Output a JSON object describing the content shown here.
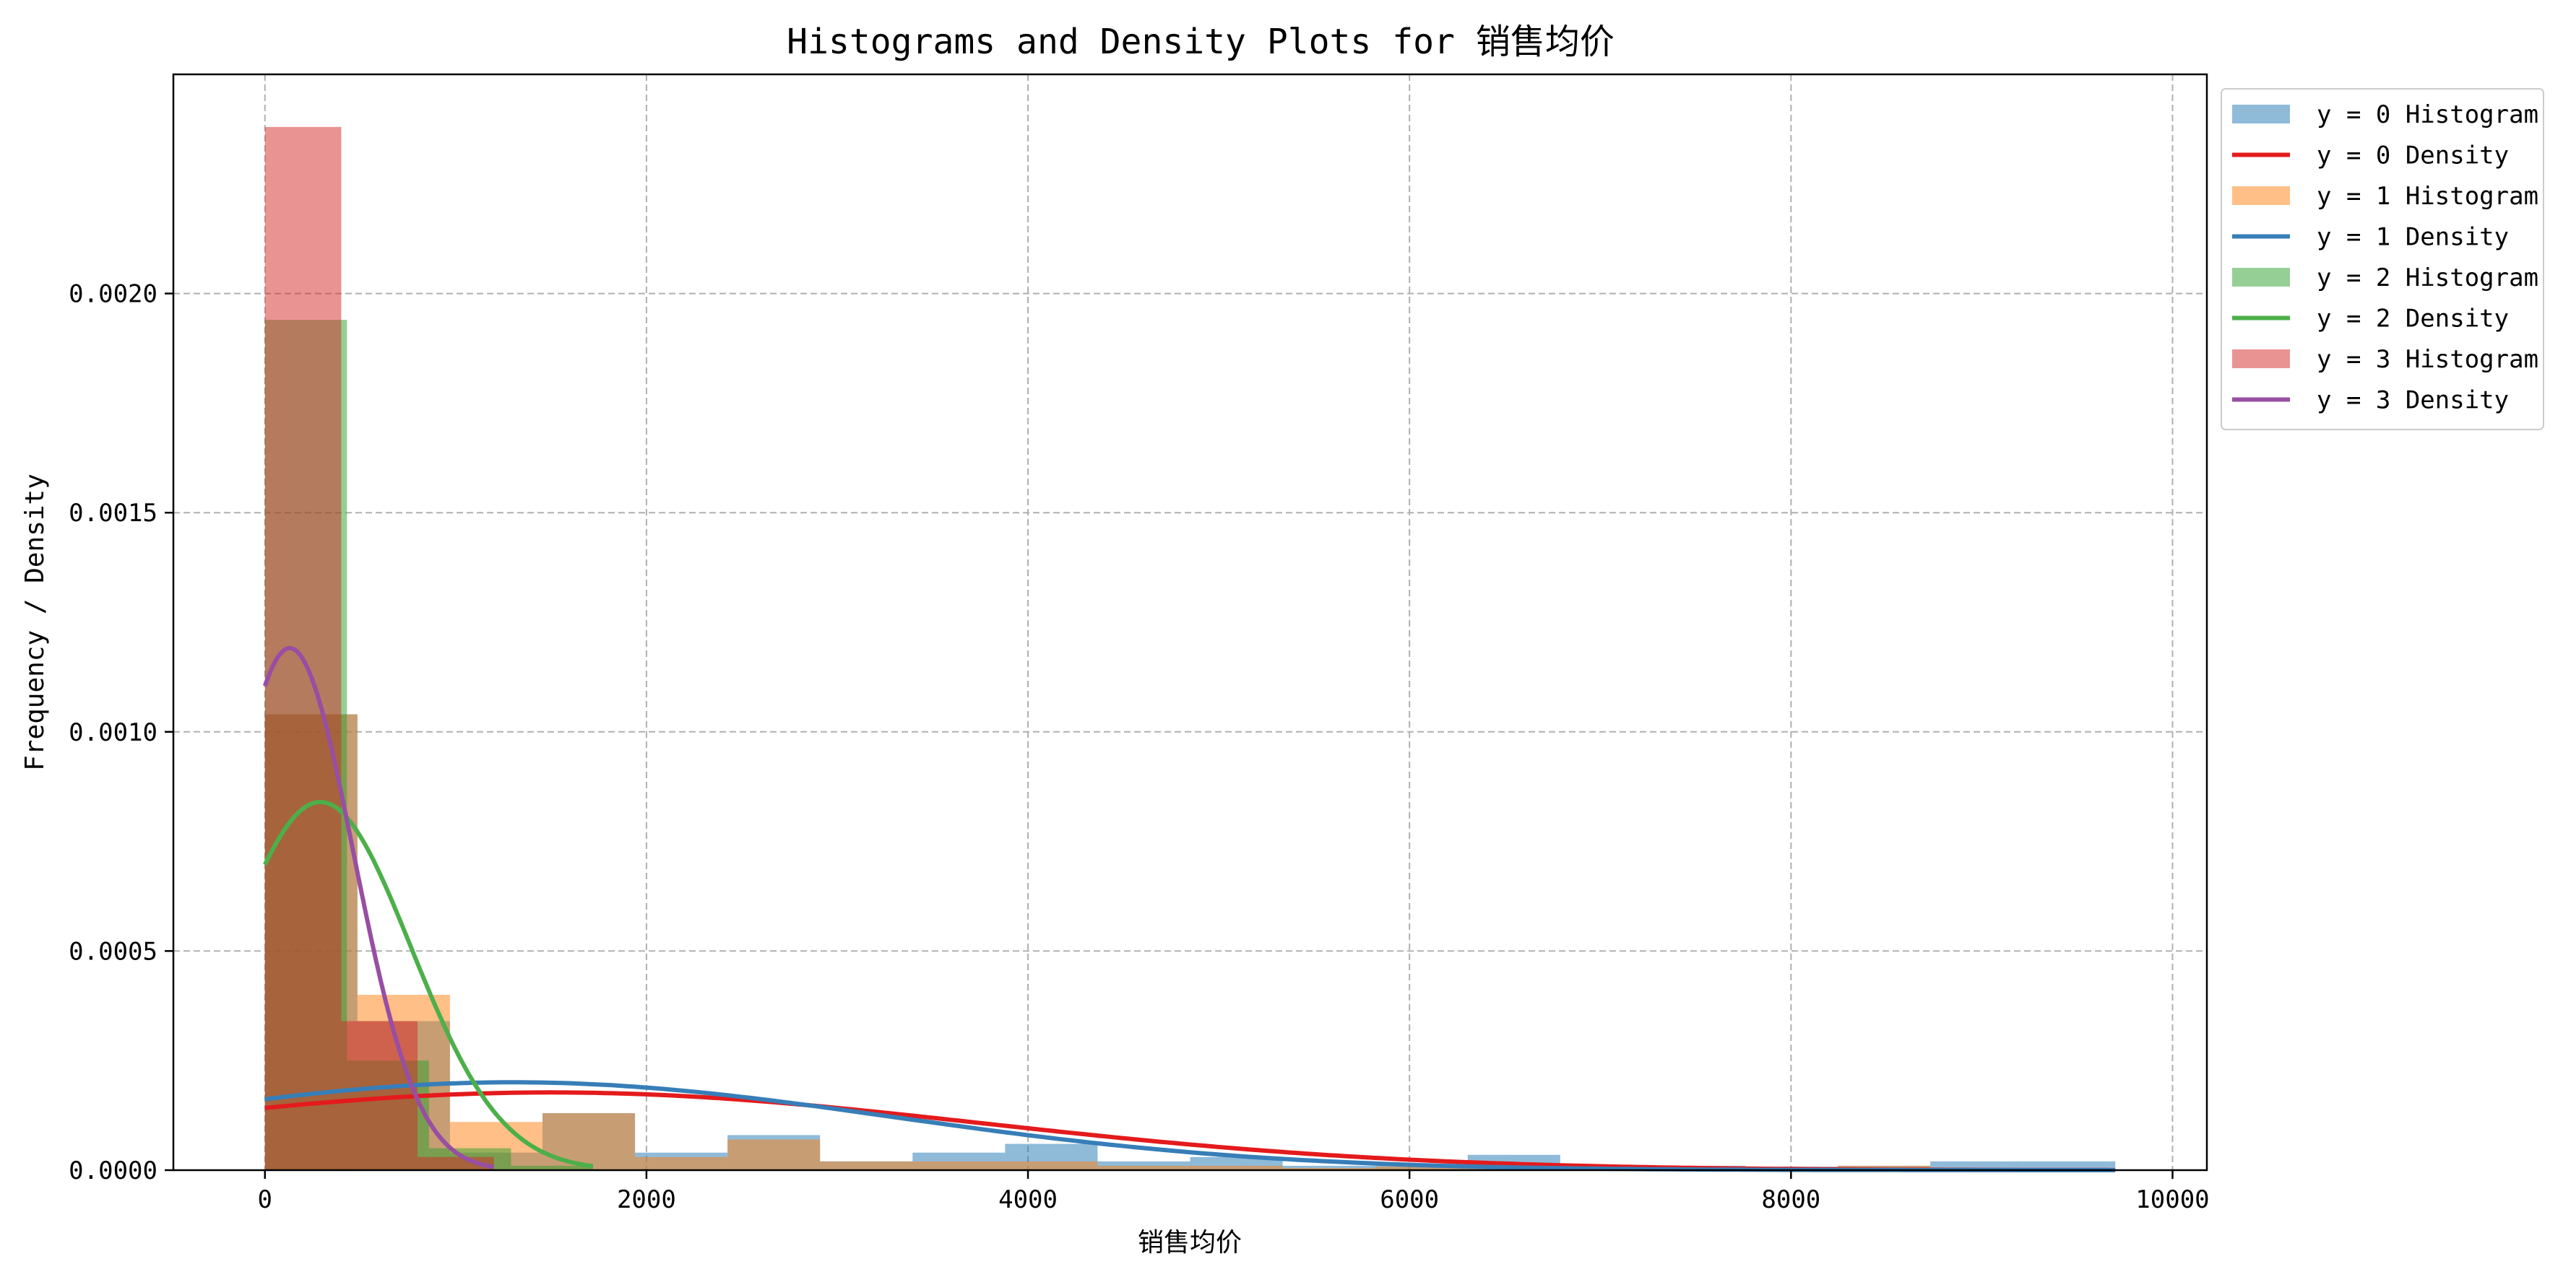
{
  "chart_data": {
    "type": "bar",
    "title": "Histograms and Density Plots for 销售均价",
    "xlabel": "销售均价",
    "ylabel": "Frequency / Density",
    "xlim": [
      -480,
      10180
    ],
    "ylim": [
      0,
      0.0025
    ],
    "x_ticks": [
      0,
      2000,
      4000,
      6000,
      8000,
      10000
    ],
    "x_tick_labels": [
      "0",
      "2000",
      "4000",
      "6000",
      "8000",
      "10000"
    ],
    "y_ticks": [
      0,
      0.0005,
      0.001,
      0.0015,
      0.002
    ],
    "y_tick_labels": [
      "0.0000",
      "0.0005",
      "0.0010",
      "0.0015",
      "0.0020"
    ],
    "grid": true,
    "legend_position": "outside-top-right",
    "histograms": [
      {
        "name": "y = 0 Histogram",
        "color": "#1f77b4",
        "opacity": 0.5,
        "bins": [
          [
            0,
            485,
            0.00104
          ],
          [
            485,
            970,
            0.00034
          ],
          [
            970,
            1455,
            4e-05
          ],
          [
            1455,
            1940,
            0.00013
          ],
          [
            1940,
            2425,
            4e-05
          ],
          [
            2425,
            2910,
            8e-05
          ],
          [
            2910,
            3395,
            2e-05
          ],
          [
            3395,
            3880,
            4e-05
          ],
          [
            3880,
            4365,
            6e-05
          ],
          [
            4365,
            4850,
            2e-05
          ],
          [
            4850,
            5335,
            3e-05
          ],
          [
            5335,
            5820,
            1e-05
          ],
          [
            5820,
            6305,
            1e-05
          ],
          [
            6305,
            6790,
            3.5e-05
          ],
          [
            6790,
            7275,
            1e-05
          ],
          [
            7275,
            7760,
            1e-05
          ],
          [
            7760,
            8245,
            8e-06
          ],
          [
            8245,
            8730,
            1e-05
          ],
          [
            8730,
            9215,
            2e-05
          ],
          [
            9215,
            9700,
            2e-05
          ]
        ]
      },
      {
        "name": "y = 1 Histogram",
        "color": "#ff7f0e",
        "opacity": 0.5,
        "bins": [
          [
            0,
            485,
            0.00104
          ],
          [
            485,
            970,
            0.0004
          ],
          [
            970,
            1455,
            0.00011
          ],
          [
            1455,
            1940,
            0.00013
          ],
          [
            1940,
            2425,
            3e-05
          ],
          [
            2425,
            2910,
            7e-05
          ],
          [
            2910,
            3395,
            2e-05
          ],
          [
            3395,
            3880,
            2e-05
          ],
          [
            3880,
            4365,
            2e-05
          ],
          [
            4365,
            4850,
            1e-05
          ],
          [
            4850,
            5335,
            1e-05
          ],
          [
            5335,
            5820,
            5e-06
          ],
          [
            5820,
            6305,
            8e-06
          ],
          [
            6305,
            6790,
            5e-06
          ],
          [
            6790,
            7275,
            5e-06
          ],
          [
            7275,
            7760,
            8e-06
          ],
          [
            7760,
            8245,
            5e-06
          ],
          [
            8245,
            8730,
            1e-05
          ],
          [
            8730,
            9215,
            3e-06
          ],
          [
            9215,
            9700,
            3e-06
          ]
        ]
      },
      {
        "name": "y = 2 Histogram",
        "color": "#2ca02c",
        "opacity": 0.5,
        "bins": [
          [
            0,
            430,
            0.00194
          ],
          [
            430,
            860,
            0.00025
          ],
          [
            860,
            1290,
            5e-05
          ],
          [
            1290,
            1720,
            1e-05
          ]
        ]
      },
      {
        "name": "y = 3 Histogram",
        "color": "#d62728",
        "opacity": 0.5,
        "bins": [
          [
            0,
            400,
            0.00238
          ],
          [
            400,
            800,
            0.00034
          ],
          [
            800,
            1200,
            3e-05
          ]
        ]
      }
    ],
    "densities": [
      {
        "name": "y = 0 Density",
        "color": "#e41a1c",
        "type": "normal",
        "mean": 1500,
        "sd": 2250,
        "x_range": [
          0,
          9700
        ]
      },
      {
        "name": "y = 1 Density",
        "color": "#377eb8",
        "type": "normal",
        "mean": 1300,
        "sd": 1990,
        "x_range": [
          0,
          9700
        ]
      },
      {
        "name": "y = 2 Density",
        "color": "#4daf4a",
        "type": "normal",
        "mean": 290,
        "sd": 475,
        "x_range": [
          0,
          1720
        ]
      },
      {
        "name": "y = 3 Density",
        "color": "#984ea3",
        "type": "normal",
        "mean": 130,
        "sd": 335,
        "x_range": [
          0,
          1200
        ]
      }
    ],
    "legend": [
      {
        "label": "y = 0 Histogram",
        "kind": "patch",
        "color": "#1f77b4",
        "opacity": 0.5
      },
      {
        "label": "y = 0 Density",
        "kind": "line",
        "color": "#e41a1c"
      },
      {
        "label": "y = 1 Histogram",
        "kind": "patch",
        "color": "#ff7f0e",
        "opacity": 0.5
      },
      {
        "label": "y = 1 Density",
        "kind": "line",
        "color": "#377eb8"
      },
      {
        "label": "y = 2 Histogram",
        "kind": "patch",
        "color": "#2ca02c",
        "opacity": 0.5
      },
      {
        "label": "y = 2 Density",
        "kind": "line",
        "color": "#4daf4a"
      },
      {
        "label": "y = 3 Histogram",
        "kind": "patch",
        "color": "#d62728",
        "opacity": 0.5
      },
      {
        "label": "y = 3 Density",
        "kind": "line",
        "color": "#984ea3"
      }
    ]
  }
}
